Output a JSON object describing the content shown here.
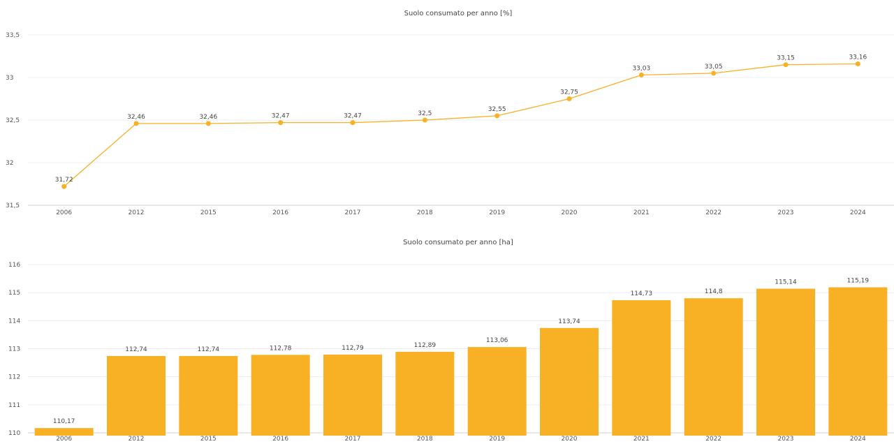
{
  "chart_data": [
    {
      "type": "line",
      "title": "Suolo consumato per anno [%]",
      "categories": [
        "2006",
        "2012",
        "2015",
        "2016",
        "2017",
        "2018",
        "2019",
        "2020",
        "2021",
        "2022",
        "2023",
        "2024"
      ],
      "values": [
        31.72,
        32.46,
        32.46,
        32.47,
        32.47,
        32.5,
        32.55,
        32.75,
        33.03,
        33.05,
        33.15,
        33.16
      ],
      "value_labels": [
        "31,72",
        "32,46",
        "32,46",
        "32,47",
        "32,47",
        "32,5",
        "32,55",
        "32,75",
        "33,03",
        "33,05",
        "33,15",
        "33,16"
      ],
      "ylim": [
        31.5,
        33.5
      ],
      "yticks": [
        31.5,
        32,
        32.5,
        33,
        33.5
      ],
      "ytick_labels": [
        "31,5",
        "32",
        "32,5",
        "33",
        "33,5"
      ],
      "grid": true,
      "color": "#f8b025"
    },
    {
      "type": "bar",
      "title": "Suolo consumato per anno [ha]",
      "categories": [
        "2006",
        "2012",
        "2015",
        "2016",
        "2017",
        "2018",
        "2019",
        "2020",
        "2021",
        "2022",
        "2023",
        "2024"
      ],
      "values": [
        110.17,
        112.74,
        112.74,
        112.78,
        112.79,
        112.89,
        113.06,
        113.74,
        114.73,
        114.8,
        115.14,
        115.19
      ],
      "value_labels": [
        "110,17",
        "112,74",
        "112,74",
        "112,78",
        "112,79",
        "112,89",
        "113,06",
        "113,74",
        "114,73",
        "114,8",
        "115,14",
        "115,19"
      ],
      "ylim": [
        110,
        116
      ],
      "yticks": [
        110,
        111,
        112,
        113,
        114,
        115,
        116
      ],
      "ytick_labels": [
        "110",
        "111",
        "112",
        "113",
        "114",
        "115",
        "116"
      ],
      "grid": true,
      "color": "#f8b025"
    }
  ]
}
